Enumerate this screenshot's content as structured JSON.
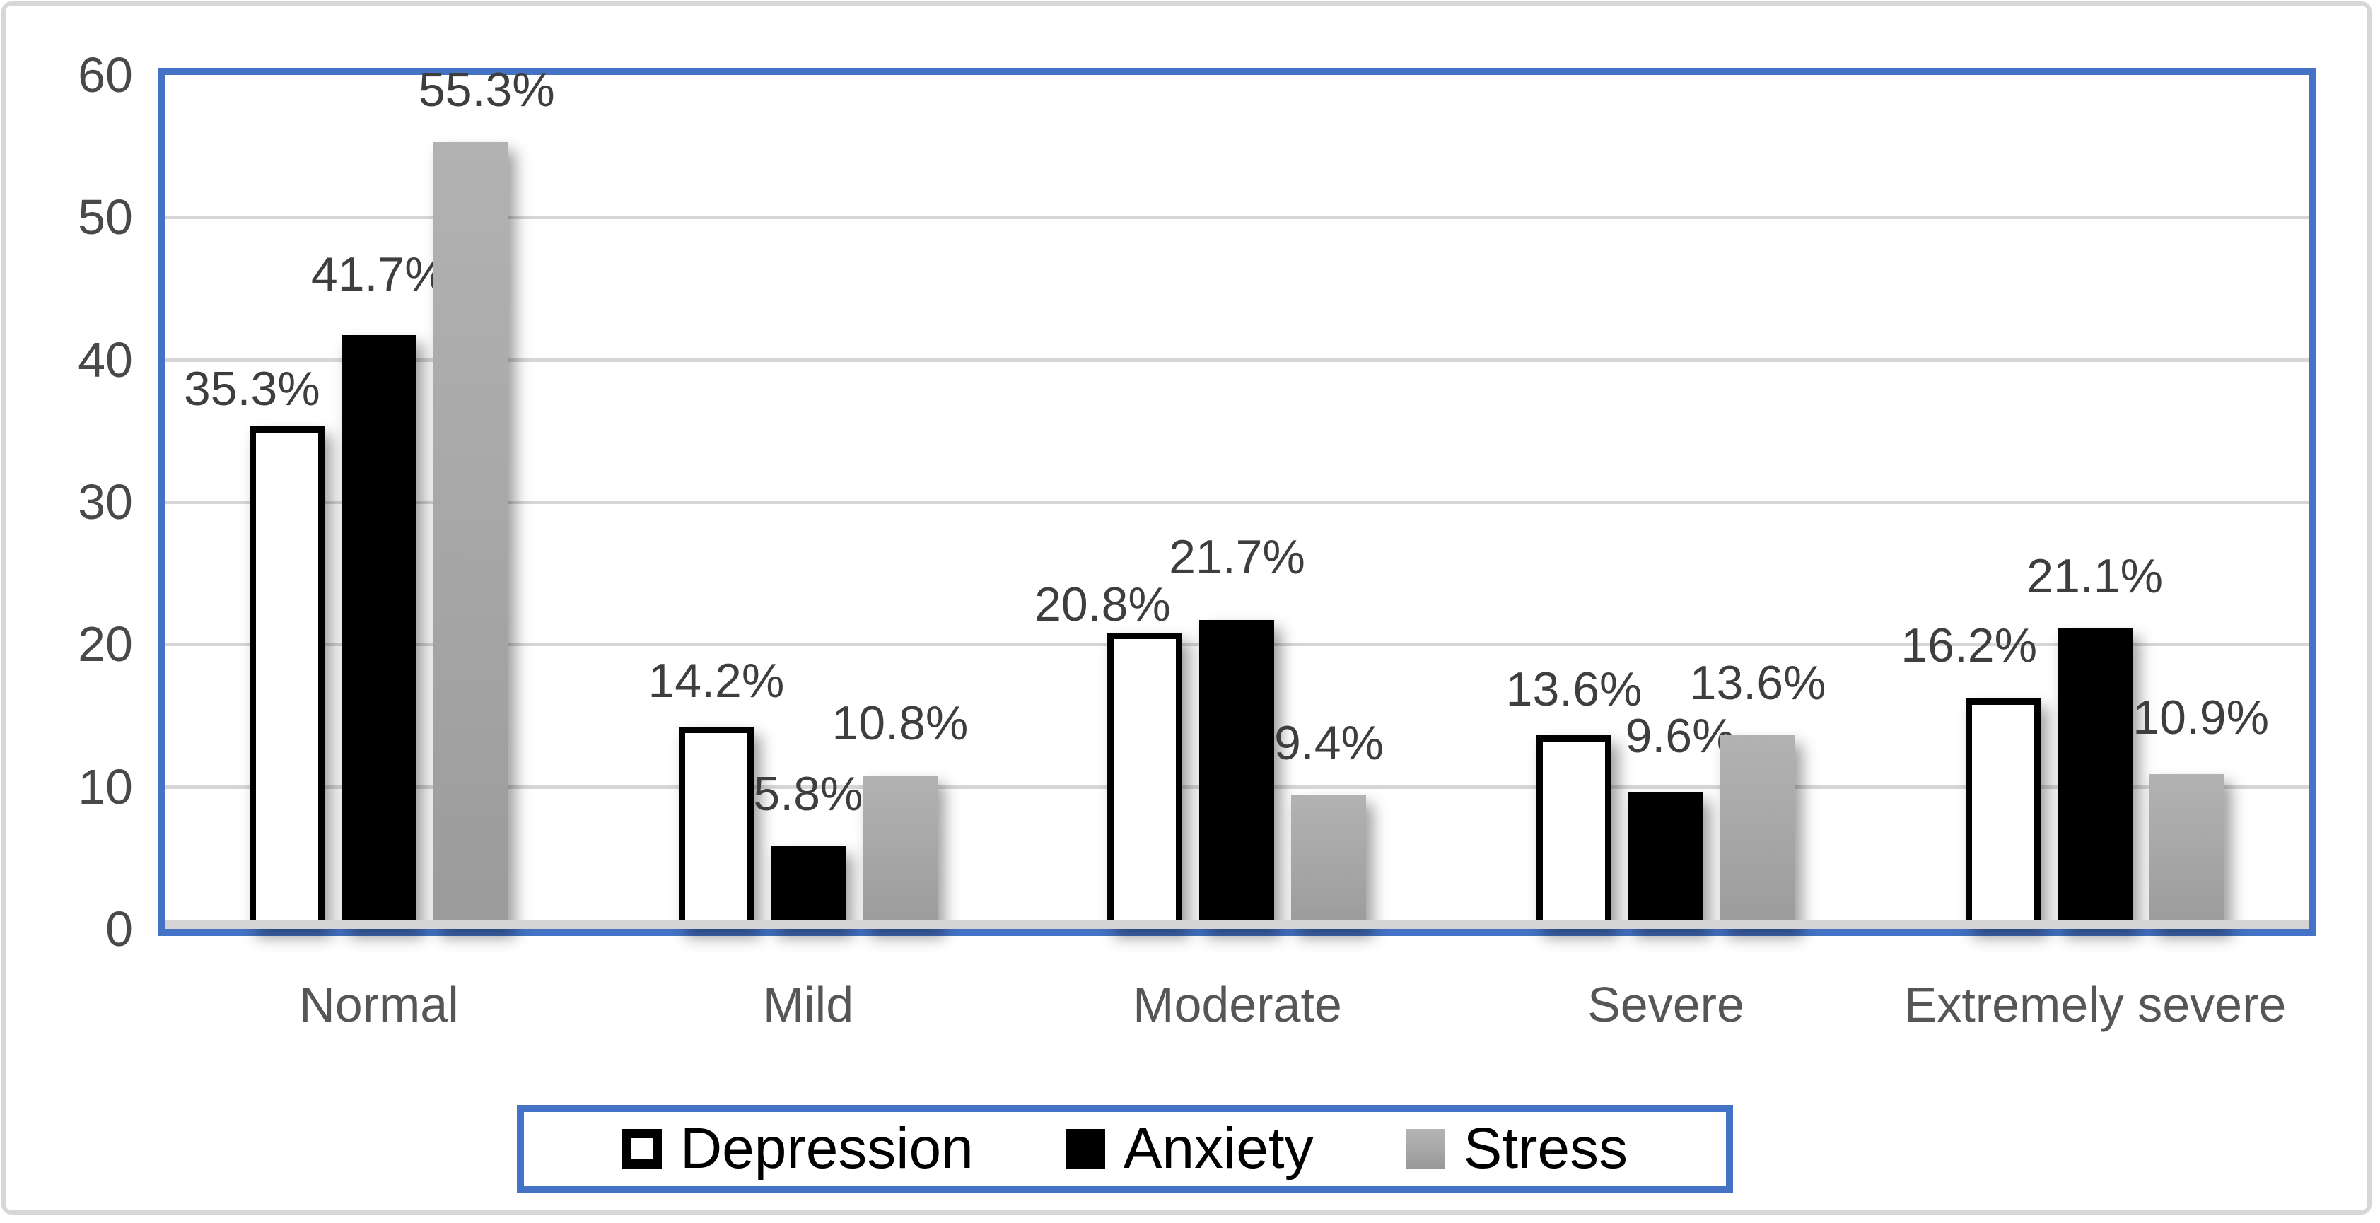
{
  "figure": {
    "background": "#ffffff",
    "outer_border_color": "#d7d7d7",
    "accent_border_color": "#4472C4",
    "gridline_color": "#d9d9d9",
    "axis_text_color": "#494949",
    "category_text_color": "#565656",
    "data_label_color": "#3e3e3e",
    "legend_text_color": "#000000",
    "stress_fill": "#a6a6a6"
  },
  "chart_data": {
    "type": "bar",
    "title": "",
    "xlabel": "",
    "ylabel": "",
    "categories": [
      "Normal",
      "Mild",
      "Moderate",
      "Severe",
      "Extremely severe"
    ],
    "series": [
      {
        "name": "Depression",
        "values": [
          35.3,
          14.2,
          20.8,
          13.6,
          16.2
        ],
        "labels": [
          "35.3%",
          "14.2%",
          "20.8%",
          "13.6%",
          "16.2%"
        ],
        "fill": "#ffffff",
        "border": "#000000"
      },
      {
        "name": "Anxiety",
        "values": [
          41.7,
          5.8,
          21.7,
          9.6,
          21.1
        ],
        "labels": [
          "41.7%",
          "5.8%",
          "21.7%",
          "9.6%",
          "21.1%"
        ],
        "fill": "#000000",
        "border": "#000000"
      },
      {
        "name": "Stress",
        "values": [
          55.3,
          10.8,
          9.4,
          13.6,
          10.9
        ],
        "labels": [
          "55.3%",
          "10.8%",
          "9.4%",
          "13.6%",
          "10.9%"
        ],
        "fill": "#a6a6a6",
        "border": "#a6a6a6"
      }
    ],
    "ylim": [
      0,
      60
    ],
    "yticks": [
      0,
      10,
      20,
      30,
      40,
      50,
      60
    ],
    "grid": true,
    "gridlines_at": [
      10,
      20,
      30,
      40,
      50
    ],
    "legend_position": "bottom",
    "value_suffix": "%"
  }
}
